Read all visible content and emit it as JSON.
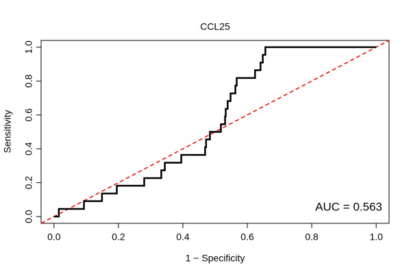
{
  "chart_data": {
    "type": "line",
    "title": "CCL25",
    "xlabel": "1 − Specificity",
    "ylabel": "Sensitivity",
    "annotation": "AUC = 0.563",
    "xlim": [
      -0.04,
      1.04
    ],
    "ylim": [
      -0.04,
      1.04
    ],
    "xticks": [
      {
        "value": 0,
        "label": "0.0"
      },
      0.2,
      0.4,
      0.6,
      0.8,
      {
        "value": 1,
        "label": "1.0"
      }
    ],
    "yticks": [
      {
        "value": 0,
        "label": "0.0"
      },
      0.2,
      0.4,
      0.6,
      0.8,
      {
        "value": 1,
        "label": "1.0"
      }
    ],
    "reference_color": "#ff0000",
    "series": [
      {
        "color": "#000000",
        "x": [
          0,
          0.015,
          0.015,
          0.093,
          0.093,
          0.149,
          0.149,
          0.195,
          0.195,
          0.28,
          0.28,
          0.333,
          0.333,
          0.344,
          0.344,
          0.395,
          0.395,
          0.469,
          0.469,
          0.472,
          0.472,
          0.484,
          0.484,
          0.518,
          0.518,
          0.531,
          0.531,
          0.533,
          0.533,
          0.539,
          0.539,
          0.548,
          0.548,
          0.563,
          0.563,
          0.567,
          0.567,
          0.624,
          0.624,
          0.641,
          0.641,
          0.648,
          0.648,
          0.656,
          0.656,
          1
        ],
        "values": [
          0,
          0,
          0.045,
          0.045,
          0.091,
          0.091,
          0.136,
          0.136,
          0.182,
          0.182,
          0.227,
          0.227,
          0.273,
          0.273,
          0.318,
          0.318,
          0.364,
          0.364,
          0.409,
          0.409,
          0.455,
          0.455,
          0.5,
          0.5,
          0.545,
          0.545,
          0.591,
          0.591,
          0.636,
          0.636,
          0.682,
          0.682,
          0.727,
          0.727,
          0.773,
          0.773,
          0.818,
          0.818,
          0.864,
          0.864,
          0.909,
          0.909,
          0.955,
          0.955,
          1,
          1
        ]
      }
    ]
  }
}
